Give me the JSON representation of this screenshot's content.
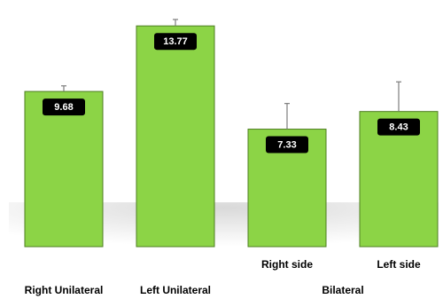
{
  "chart_data": {
    "type": "bar",
    "categories": [
      "Right Unilateral",
      "Left Unilateral",
      "Right side",
      "Left side"
    ],
    "group_labels": [
      "Bilateral"
    ],
    "values": [
      9.68,
      13.77,
      7.33,
      8.43
    ],
    "value_labels": [
      "9.68",
      "13.77",
      "7.33",
      "8.43"
    ],
    "error_plus": [
      0.35,
      0.4,
      1.6,
      1.85
    ],
    "ylim": [
      0,
      14.5
    ],
    "title": "",
    "xlabel": "",
    "ylabel": "",
    "grid": false,
    "colors": {
      "bar": "#8cd446",
      "bar_edge": "#4e7e22",
      "label_box": "#000000",
      "label_text": "#ffffff",
      "error_bar": "#7d7d7d"
    }
  }
}
